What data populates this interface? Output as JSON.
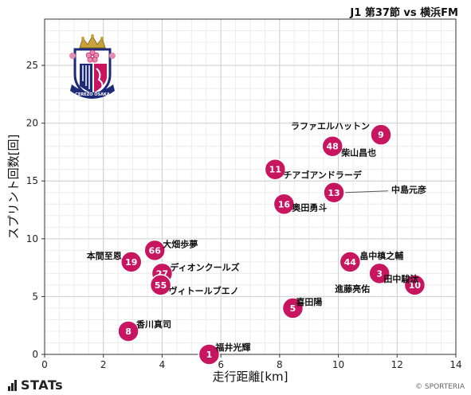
{
  "header": {
    "title": "J1 第37節 vs 横浜FM"
  },
  "footer": {
    "brand": "STATs",
    "credit": "© SPORTERIA"
  },
  "logo": {
    "icon": "cerezo-osaka-crest-icon",
    "text": "CEREZO OSAKA"
  },
  "colors": {
    "marker": "#c8155f",
    "grid": "#cfcfcf",
    "minor_grid": "#ececec"
  },
  "chart_data": {
    "type": "scatter",
    "xlabel": "走行距離[km]",
    "ylabel": "スプリント回数[回]",
    "xlim": [
      0,
      14
    ],
    "ylim": [
      0,
      29
    ],
    "xticks": [
      0,
      2,
      4,
      6,
      8,
      10,
      12,
      14
    ],
    "yticks": [
      0,
      5,
      10,
      15,
      20,
      25
    ],
    "grid": true,
    "points": [
      {
        "number": "9",
        "name": "ラファエルハットン",
        "x": 11.45,
        "y": 19
      },
      {
        "number": "48",
        "name": "柴山昌也",
        "x": 9.8,
        "y": 18
      },
      {
        "number": "11",
        "name": "チアゴアンドラーデ",
        "x": 7.85,
        "y": 16
      },
      {
        "number": "13",
        "name": "中島元彦",
        "x": 9.85,
        "y": 14
      },
      {
        "number": "16",
        "name": "奥田勇斗",
        "x": 8.15,
        "y": 13
      },
      {
        "number": "66",
        "name": "大畑歩夢",
        "x": 3.75,
        "y": 9
      },
      {
        "number": "19",
        "name": "本間至恩",
        "x": 2.95,
        "y": 8
      },
      {
        "number": "27",
        "name": "ディオンクールズ",
        "x": 4.0,
        "y": 7
      },
      {
        "number": "55",
        "name": "ヴィトールブエノ",
        "x": 3.95,
        "y": 6
      },
      {
        "number": "44",
        "name": "畠中槙之輔",
        "x": 10.4,
        "y": 8
      },
      {
        "number": "3",
        "name": "進藤亮佑",
        "x": 11.4,
        "y": 7
      },
      {
        "number": "10",
        "name": "田中駿汰",
        "x": 12.6,
        "y": 6
      },
      {
        "number": "5",
        "name": "喜田陽",
        "x": 8.45,
        "y": 4
      },
      {
        "number": "8",
        "name": "香川真司",
        "x": 2.85,
        "y": 2
      },
      {
        "number": "1",
        "name": "福井光輝",
        "x": 5.6,
        "y": 0
      }
    ]
  }
}
